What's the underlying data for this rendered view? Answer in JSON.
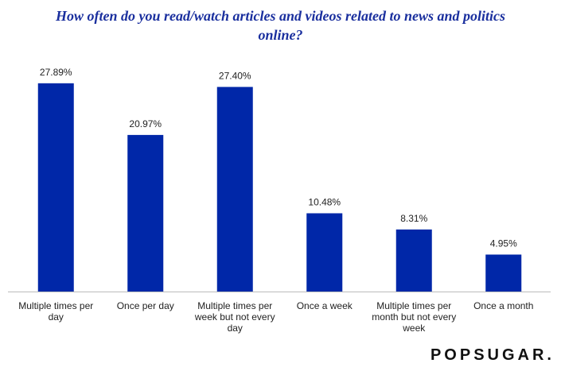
{
  "chart_data": {
    "type": "bar",
    "title": "How often do you read/watch articles and videos related to news and politics online?",
    "categories": [
      "Multiple times per day",
      "Once per day",
      "Multiple times per week but not every day",
      "Once a week",
      "Multiple times per month but not every week",
      "Once a month"
    ],
    "values": [
      27.89,
      20.97,
      27.4,
      10.48,
      8.31,
      4.95
    ],
    "value_labels": [
      "27.89%",
      "20.97%",
      "27.40%",
      "10.48%",
      "8.31%",
      "4.95%"
    ],
    "color": "#0027a8"
  },
  "watermark": "POPSUGAR."
}
